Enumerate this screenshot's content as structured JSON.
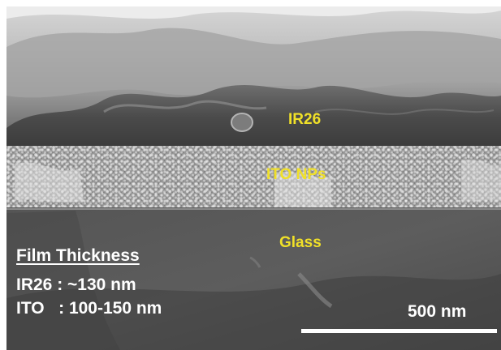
{
  "layer_labels": {
    "top": "IR26",
    "middle": "ITO NPs",
    "bottom": "Glass"
  },
  "film_thickness": {
    "heading": "Film Thickness",
    "rows": [
      "IR26 : ~130 nm",
      "ITO   : 100-150 nm"
    ]
  },
  "scale_bar": {
    "label": "500 nm"
  },
  "colors": {
    "layer_label": "#f0e028",
    "annotation": "#ffffff"
  }
}
